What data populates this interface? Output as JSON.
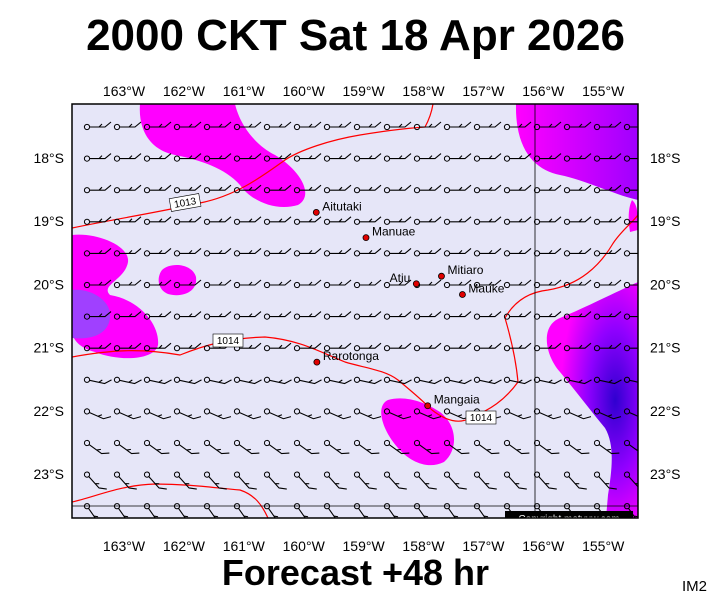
{
  "title": "2000 CKT Sat 18 Apr 2026",
  "footer": "Forecast +48 hr",
  "product_code": "IM2",
  "copyright": "Copyright metvuw.com",
  "lon_ticks": [
    "163°W",
    "162°W",
    "161°W",
    "160°W",
    "159°W",
    "158°W",
    "157°W",
    "156°W",
    "155°W"
  ],
  "lat_ticks": [
    "18°S",
    "19°S",
    "20°S",
    "21°S",
    "22°S",
    "23°S"
  ],
  "places": [
    {
      "name": "Aitutaki",
      "lon": -159.79,
      "lat": -18.86
    },
    {
      "name": "Manuae",
      "lon": -158.96,
      "lat": -19.26
    },
    {
      "name": "Mitiaro",
      "lon": -157.7,
      "lat": -19.87
    },
    {
      "name": "Atiu",
      "lon": -158.12,
      "lat": -19.99
    },
    {
      "name": "Mauke",
      "lon": -157.35,
      "lat": -20.16
    },
    {
      "name": "Rarotonga",
      "lon": -159.78,
      "lat": -21.23
    },
    {
      "name": "Mangaia",
      "lon": -157.93,
      "lat": -21.92
    }
  ],
  "isobars": [
    {
      "label": "1013"
    },
    {
      "label": "1014"
    },
    {
      "label": "1014"
    }
  ],
  "colors": {
    "background": "#e6e6f8",
    "magenta": "#ff00ff",
    "violet": "#a000ff",
    "deep_blue": "#4000e0",
    "isobar": "#ff0000",
    "land": "#e00000"
  }
}
